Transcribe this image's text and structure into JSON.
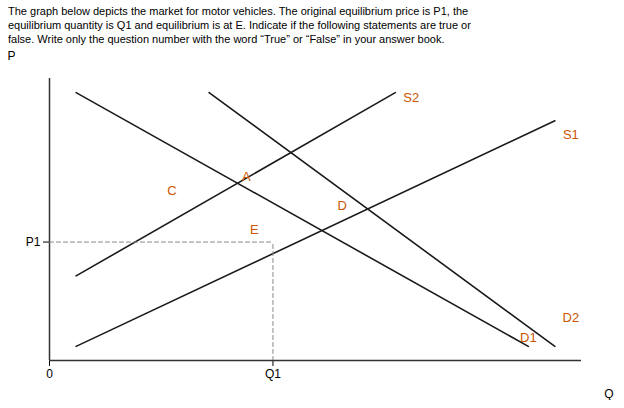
{
  "chart_data": {
    "type": "line",
    "title": "The graph below depicts the market for motor vehicles. The original equilibrium price is P1, the\nequilibrium quantity is Q1 and equilibrium is at E. Indicate if the following statements are true or\nfalse. Write only the question number with the word “True” or “False” in your answer book.",
    "x_label": "Q",
    "y_label": "P",
    "xlim": [
      0,
      10
    ],
    "ylim": [
      0,
      10
    ],
    "xticks": [
      0,
      {
        "value": 4.2,
        "label": "Q1"
      }
    ],
    "yticks": [
      {
        "value": 4.2,
        "label": "P1"
      }
    ],
    "grid": false,
    "series": [
      {
        "x": [
          0.5,
          9.5
        ],
        "values": [
          0.5,
          8.5
        ],
        "color": "#1a1a1a",
        "line_style": "solid"
      },
      {
        "x": [
          0.5,
          6.5
        ],
        "values": [
          3.0,
          9.5
        ],
        "color": "#1a1a1a",
        "line_style": "solid"
      },
      {
        "x": [
          0.5,
          9.0
        ],
        "values": [
          9.5,
          0.5
        ],
        "color": "#1a1a1a",
        "line_style": "solid"
      },
      {
        "x": [
          3.0,
          9.5
        ],
        "values": [
          9.5,
          0.5
        ],
        "color": "#1a1a1a",
        "line_style": "solid"
      },
      {
        "x": [
          0,
          4.2
        ],
        "values": [
          4.2,
          4.2
        ],
        "color": "#888888",
        "line_style": "dashed"
      },
      {
        "x": [
          4.2,
          4.2
        ],
        "values": [
          0,
          4.2
        ],
        "color": "#888888",
        "line_style": "dashed"
      }
    ],
    "annotations": [
      {
        "text": "S1",
        "x": 9.8,
        "y": 8.0,
        "color": "#CC5500"
      },
      {
        "text": "S2",
        "x": 6.8,
        "y": 9.3,
        "color": "#CC5500"
      },
      {
        "text": "D1",
        "x": 9.0,
        "y": 0.8,
        "color": "#CC5500"
      },
      {
        "text": "D2",
        "x": 9.8,
        "y": 1.5,
        "color": "#CC5500"
      },
      {
        "text": "E",
        "x": 3.85,
        "y": 4.65,
        "color": "#CC5500"
      },
      {
        "text": "A",
        "x": 3.7,
        "y": 6.5,
        "color": "#CC5500"
      },
      {
        "text": "C",
        "x": 2.3,
        "y": 6.0,
        "color": "#CC5500"
      },
      {
        "text": "D",
        "x": 5.5,
        "y": 5.5,
        "color": "#CC5500"
      }
    ]
  }
}
